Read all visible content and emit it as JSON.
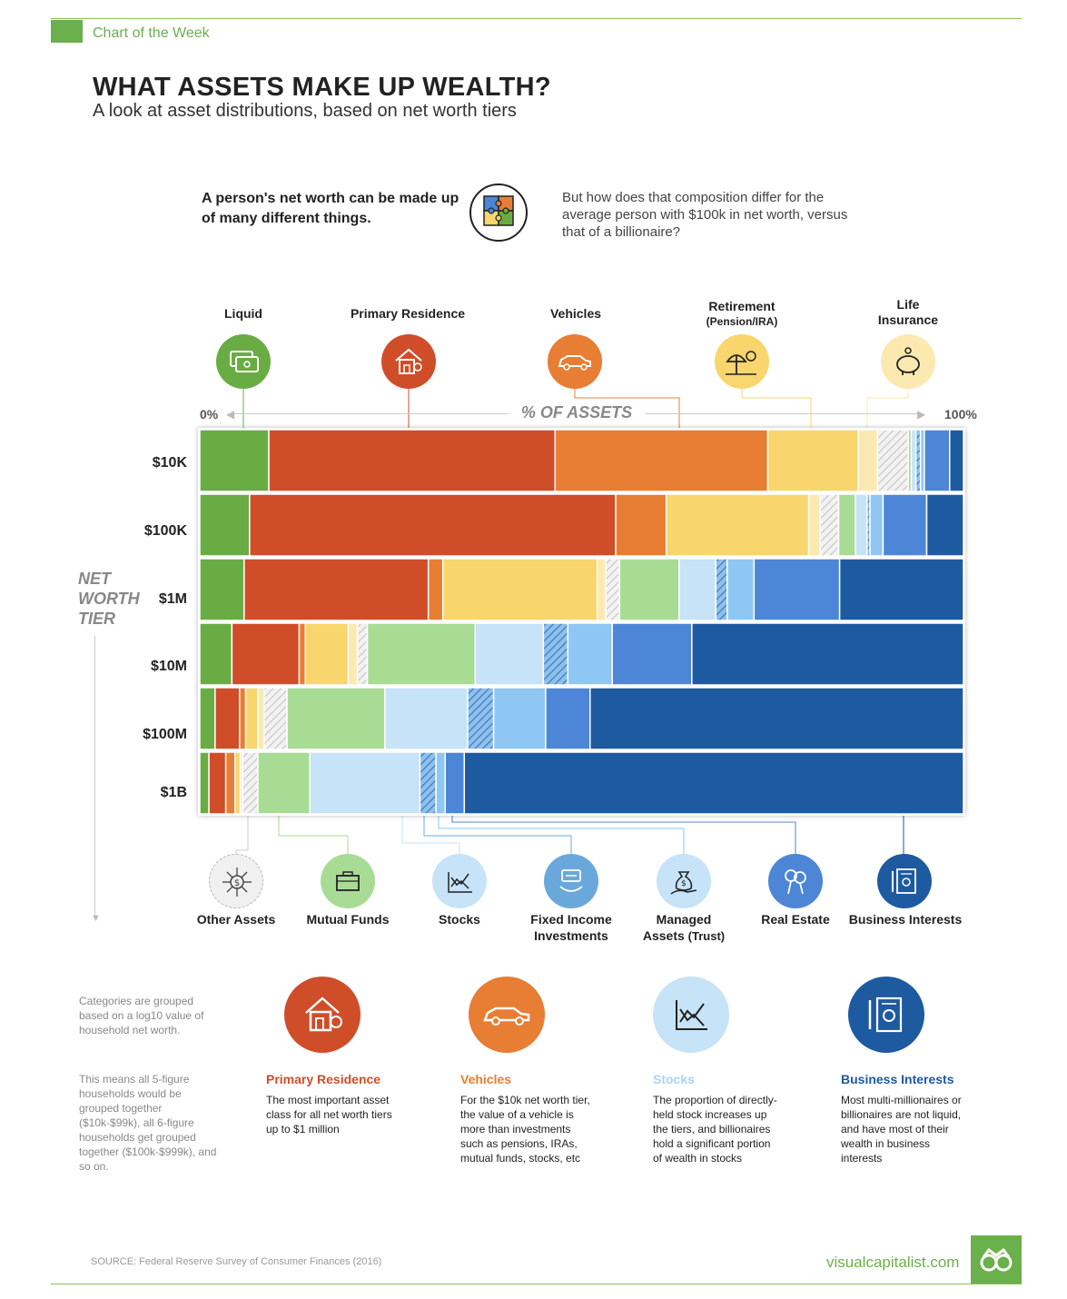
{
  "header": {
    "kicker": "Chart of the Week",
    "title": "WHAT ASSETS MAKE UP WEALTH?",
    "subtitle": "A look at asset distributions, based on net worth tiers"
  },
  "intro": {
    "left_text": "A person's net worth can be made up of many different things.",
    "right_text": "But how does that composition differ for the average person with $100k in net worth, versus that of a billionaire?",
    "icon": "puzzle-icon"
  },
  "top_categories": [
    {
      "label": "Liquid",
      "sub": "",
      "icon": "cash-icon",
      "color": "#6aac44"
    },
    {
      "label": "Primary Residence",
      "sub": "",
      "icon": "house-icon",
      "color": "#d04d29"
    },
    {
      "label": "Vehicles",
      "sub": "",
      "icon": "car-icon",
      "color": "#e87d34"
    },
    {
      "label": "Retirement",
      "sub": "(Pension/IRA)",
      "icon": "beach-umbrella-icon",
      "color": "#f8d66d"
    },
    {
      "label": "Life",
      "sub": "Insurance",
      "icon": "piggy-bank-icon",
      "color": "#fbe9b0"
    }
  ],
  "bottom_categories": [
    {
      "label": "Other Assets",
      "label2": "",
      "icon": "dollar-network-icon",
      "color": "#e2e2e2"
    },
    {
      "label": "Mutual Funds",
      "label2": "",
      "icon": "briefcase-icon",
      "color": "#a8dc94"
    },
    {
      "label": "Stocks",
      "label2": "",
      "icon": "stock-chart-icon",
      "color": "#c6e3f8"
    },
    {
      "label": "Fixed Income",
      "label2": "Investments",
      "icon": "bonds-icon",
      "color": "#6aa8dc"
    },
    {
      "label": "Managed",
      "label2": "Assets",
      "label3": "(Trust)",
      "icon": "money-bag-icon",
      "color": "#8ec7f3"
    },
    {
      "label": "Real Estate",
      "label2": "",
      "icon": "keys-icon",
      "color": "#4d86d6"
    },
    {
      "label": "Business Interests",
      "label2": "",
      "icon": "certificate-icon",
      "color": "#1e5aa0"
    }
  ],
  "axis": {
    "min_label": "0%",
    "max_label": "100%",
    "title": "% OF ASSETS",
    "tier_title": [
      "NET",
      "WORTH",
      "TIER"
    ]
  },
  "chart_data": {
    "type": "bar",
    "orientation": "horizontal",
    "stacked": true,
    "xlim": [
      0,
      100
    ],
    "xlabel": "% OF ASSETS",
    "ylabel": "NET WORTH TIER",
    "categories": [
      "$10K",
      "$100K",
      "$1M",
      "$10M",
      "$100M",
      "$1B"
    ],
    "series": [
      {
        "name": "Liquid",
        "color": "#6aac44",
        "values": [
          9.0,
          6.5,
          5.8,
          4.2,
          2.0,
          1.2
        ]
      },
      {
        "name": "Primary Residence",
        "color": "#d04d29",
        "values": [
          37.3,
          47.8,
          24.1,
          8.8,
          3.2,
          2.2
        ]
      },
      {
        "name": "Vehicles",
        "color": "#e87d34",
        "values": [
          27.7,
          6.6,
          1.9,
          0.8,
          0.8,
          1.2
        ]
      },
      {
        "name": "Retirement (Pension/IRA)",
        "color": "#f8d66d",
        "values": [
          11.8,
          18.6,
          20.2,
          5.6,
          1.6,
          0.7
        ]
      },
      {
        "name": "Life Insurance",
        "color": "#fbe9b0",
        "values": [
          2.5,
          1.5,
          1.1,
          1.2,
          0.8,
          0.3
        ]
      },
      {
        "name": "Other Assets",
        "color": "#e2e2e2",
        "values": [
          4.0,
          2.4,
          1.8,
          1.3,
          3.0,
          2.0
        ]
      },
      {
        "name": "Mutual Funds",
        "color": "#a8dc94",
        "values": [
          0.4,
          2.2,
          7.8,
          14.1,
          12.8,
          6.8
        ]
      },
      {
        "name": "Stocks",
        "color": "#c6e3f8",
        "values": [
          0.6,
          1.5,
          4.8,
          8.9,
          10.8,
          14.4
        ]
      },
      {
        "name": "Fixed Income Investments",
        "color": "#6aa8dc",
        "values": [
          0.6,
          0.4,
          1.5,
          3.2,
          3.4,
          2.1
        ]
      },
      {
        "name": "Managed Assets (Trust)",
        "color": "#8ec7f3",
        "values": [
          0.5,
          1.7,
          3.5,
          5.8,
          6.8,
          1.2
        ]
      },
      {
        "name": "Real Estate",
        "color": "#4d86d6",
        "values": [
          3.3,
          5.7,
          11.2,
          10.4,
          5.8,
          2.5
        ]
      },
      {
        "name": "Business Interests",
        "color": "#1e5aa0",
        "values": [
          1.8,
          4.8,
          16.2,
          35.5,
          48.8,
          65.3
        ]
      }
    ]
  },
  "notes": {
    "note1": "Categories are grouped based on a log10 value of household net worth.",
    "note2": "This means all 5-figure households would be grouped together ($10k-$99k), all 6-figure households get grouped together ($100k-$999k), and so on."
  },
  "highlights": [
    {
      "title": "Primary Residence",
      "title_color": "#d04d29",
      "icon": "house-icon",
      "circle_color": "#d04d29",
      "text": "The most important asset class for all net worth tiers up to $1 million"
    },
    {
      "title": "Vehicles",
      "title_color": "#e87d34",
      "icon": "car-icon",
      "circle_color": "#e87d34",
      "text": "For the $10k net worth tier, the value of a vehicle is more than investments such as pensions, IRAs, mutual funds, stocks, etc"
    },
    {
      "title": "Stocks",
      "title_color": "#a9d3f5",
      "icon": "stock-chart-icon",
      "circle_color": "#c6e3f8",
      "text": "The proportion of directly-held stock increases up the tiers, and billionaires hold a significant portion of wealth in stocks"
    },
    {
      "title": "Business Interests",
      "title_color": "#1e5aa0",
      "icon": "certificate-icon",
      "circle_color": "#1e5aa0",
      "text": "Most multi-millionaires or billionaires are not liquid, and have most of their wealth in business interests"
    }
  ],
  "footer": {
    "source": "SOURCE: Federal Reserve Survey of Consumer Finances (2016)",
    "brand": "visualcapitalist.com",
    "brand_icon": "binoculars-icon"
  }
}
